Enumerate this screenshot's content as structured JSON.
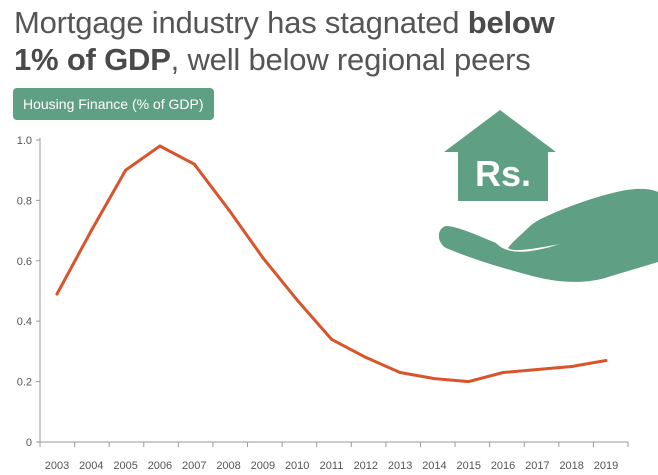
{
  "headline": {
    "part1": "Mortgage industry has stagnated ",
    "bold1": "below",
    "bold2": "1% of GDP",
    "part2": ", well below regional peers"
  },
  "illustration": {
    "icon": "house-in-hand-icon",
    "currency_label": "Rs."
  },
  "colors": {
    "line": "#d9542b",
    "accent": "#5f9f83",
    "axis": "#9a9a9a",
    "text": "#555555"
  },
  "chart_data": {
    "type": "line",
    "title": "",
    "xlabel": "",
    "ylabel": "",
    "series": [
      {
        "name": "Housing Finance (% of GDP)",
        "x": [
          "2003",
          "2004",
          "2005",
          "2006",
          "2007",
          "2008",
          "2009",
          "2010",
          "2011",
          "2012",
          "2013",
          "2014",
          "2015",
          "2016",
          "2017",
          "2018",
          "2019"
        ],
        "values": [
          0.49,
          0.7,
          0.9,
          0.98,
          0.92,
          0.77,
          0.61,
          0.47,
          0.34,
          0.28,
          0.23,
          0.21,
          0.2,
          0.23,
          0.24,
          0.25,
          0.27
        ]
      }
    ],
    "ylim": [
      0,
      1.0
    ],
    "yticks": [
      "0",
      "0.2",
      "0.4",
      "0.6",
      "0.8",
      "1.0"
    ],
    "grid": false,
    "legend": "top-left"
  }
}
